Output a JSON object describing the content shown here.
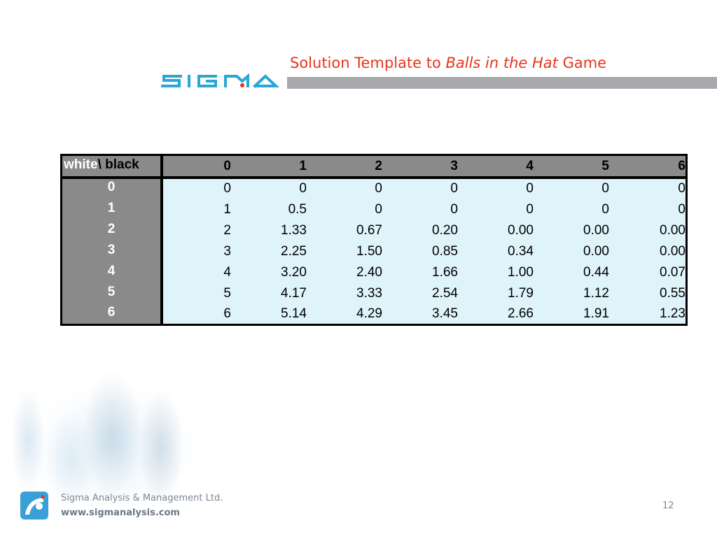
{
  "slide": {
    "title_prefix": "Solution Template to ",
    "title_italic": "Balls in the Hat",
    "title_suffix": " Game",
    "logo_text": "SIGMA",
    "accent_color": "#e8341c",
    "logo_color": "#2aa7d6"
  },
  "table": {
    "corner_white": "white",
    "corner_black": "\\ black",
    "columns": [
      "0",
      "1",
      "2",
      "3",
      "4",
      "5",
      "6"
    ],
    "rows": [
      {
        "label": "0",
        "values": [
          "0",
          "0",
          "0",
          "0",
          "0",
          "0",
          "0"
        ]
      },
      {
        "label": "1",
        "values": [
          "1",
          "0.5",
          "0",
          "0",
          "0",
          "0",
          "0"
        ]
      },
      {
        "label": "2",
        "values": [
          "2",
          "1.33",
          "0.67",
          "0.20",
          "0.00",
          "0.00",
          "0.00"
        ]
      },
      {
        "label": "3",
        "values": [
          "3",
          "2.25",
          "1.50",
          "0.85",
          "0.34",
          "0.00",
          "0.00"
        ]
      },
      {
        "label": "4",
        "values": [
          "4",
          "3.20",
          "2.40",
          "1.66",
          "1.00",
          "0.44",
          "0.07"
        ]
      },
      {
        "label": "5",
        "values": [
          "5",
          "4.17",
          "3.33",
          "2.54",
          "1.79",
          "1.12",
          "0.55"
        ]
      },
      {
        "label": "6",
        "values": [
          "6",
          "5.14",
          "4.29",
          "3.45",
          "2.66",
          "1.91",
          "1.23"
        ]
      }
    ]
  },
  "footer": {
    "company": "Sigma Analysis & Management Ltd.",
    "url": "www.sigmanalysis.com",
    "page_number": "12"
  }
}
